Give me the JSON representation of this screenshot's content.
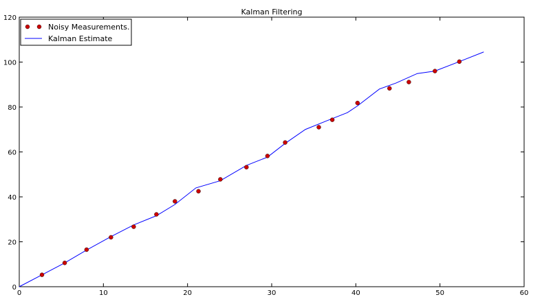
{
  "chart_data": {
    "type": "scatter",
    "title": "Kalman Filtering",
    "xlabel": "",
    "ylabel": "",
    "xlim": [
      0,
      60
    ],
    "ylim": [
      0,
      120
    ],
    "xticks": [
      0,
      10,
      20,
      30,
      40,
      50,
      60
    ],
    "yticks": [
      0,
      20,
      40,
      60,
      80,
      100,
      120
    ],
    "grid": false,
    "legend_position": "top-left",
    "series": [
      {
        "name": "Noisy Measurements.",
        "kind": "markers",
        "color": "#cc0000",
        "x": [
          2.7,
          5.4,
          8.0,
          10.9,
          13.6,
          16.3,
          18.5,
          21.3,
          23.9,
          27.0,
          29.5,
          31.6,
          35.6,
          37.2,
          40.2,
          44.0,
          46.3,
          49.4,
          52.3
        ],
        "y": [
          5.3,
          10.6,
          16.5,
          22.0,
          26.7,
          32.2,
          38.0,
          42.5,
          47.8,
          53.2,
          58.2,
          64.2,
          71.0,
          74.3,
          81.8,
          88.3,
          91.1,
          96.0,
          100.2
        ]
      },
      {
        "name": "Kalman Estimate",
        "kind": "line",
        "color": "#0000ff",
        "x": [
          0,
          2.7,
          5.4,
          8.0,
          10.9,
          13.6,
          16.3,
          18.5,
          21.0,
          23.9,
          27.0,
          29.5,
          31.6,
          34.0,
          36.5,
          39.0,
          40.2,
          42.8,
          44.8,
          47.3,
          49.4,
          52.3,
          55.2
        ],
        "y": [
          0,
          5.3,
          10.6,
          16.3,
          22.3,
          27.5,
          31.6,
          36.6,
          44.0,
          47.2,
          54.0,
          57.7,
          63.8,
          70.0,
          73.8,
          77.5,
          80.5,
          88.0,
          90.7,
          94.9,
          96.0,
          100.2,
          104.5
        ]
      }
    ]
  }
}
